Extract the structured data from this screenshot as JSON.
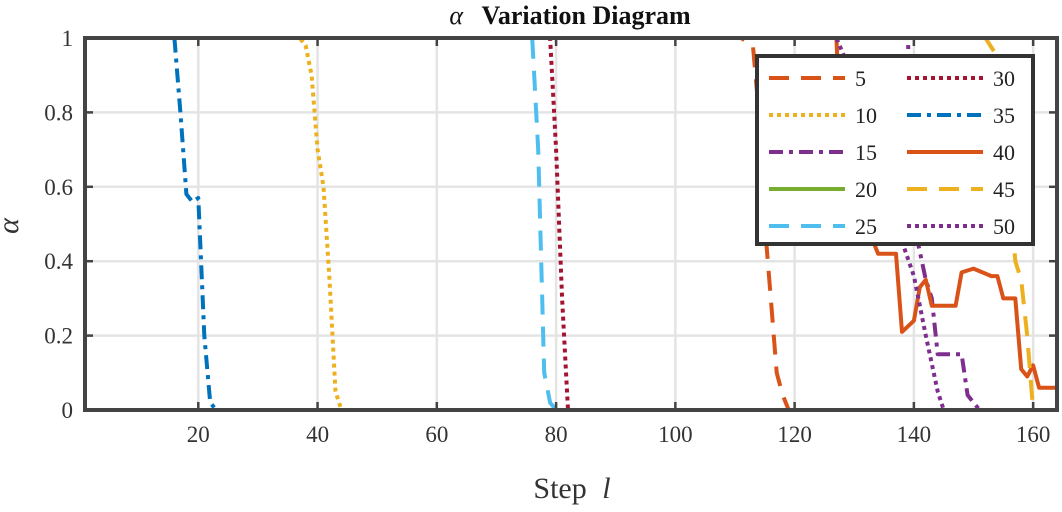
{
  "chart_data": {
    "type": "line",
    "title": "Variation Diagram",
    "title_symbol": "α",
    "xlabel": "Step",
    "xlabel_symbol": "l",
    "ylabel": "α",
    "xlim": [
      1,
      164
    ],
    "ylim": [
      0,
      1
    ],
    "xticks": [
      20,
      40,
      60,
      80,
      100,
      120,
      140,
      160
    ],
    "yticks": [
      0,
      0.2,
      0.4,
      0.6,
      0.8,
      1
    ],
    "xtick_labels": [
      "20",
      "40",
      "60",
      "80",
      "100",
      "120",
      "140",
      "160"
    ],
    "ytick_labels": [
      "0",
      "0.2",
      "0.4",
      "0.6",
      "0.8",
      "1"
    ],
    "grid": true,
    "legend": {
      "position": "top-right",
      "columns": 2
    },
    "series": [
      {
        "name": "5",
        "color": "#d95319",
        "style": "dashed",
        "points": [
          [
            1,
            1
          ],
          [
            111,
            1
          ],
          [
            113,
            0.98
          ],
          [
            114,
            0.8
          ],
          [
            115,
            0.5
          ],
          [
            116,
            0.3
          ],
          [
            117,
            0.1
          ],
          [
            118,
            0.04
          ],
          [
            119,
            0
          ],
          [
            164,
            0
          ]
        ]
      },
      {
        "name": "10",
        "color": "#edb120",
        "style": "dotted",
        "points": [
          [
            1,
            1
          ],
          [
            37,
            1
          ],
          [
            38,
            0.98
          ],
          [
            39,
            0.9
          ],
          [
            40,
            0.7
          ],
          [
            41,
            0.6
          ],
          [
            42,
            0.35
          ],
          [
            43,
            0.05
          ],
          [
            44,
            0
          ],
          [
            164,
            0
          ]
        ]
      },
      {
        "name": "15",
        "color": "#7e2f8e",
        "style": "dashdot",
        "points": [
          [
            1,
            1
          ],
          [
            139,
            1
          ],
          [
            140,
            0.5
          ],
          [
            142,
            0.35
          ],
          [
            143,
            0.3
          ],
          [
            144,
            0.15
          ],
          [
            148,
            0.15
          ],
          [
            149,
            0.04
          ],
          [
            151,
            0
          ],
          [
            164,
            0
          ]
        ]
      },
      {
        "name": "20",
        "color": "#77ac30",
        "style": "solid",
        "points": [
          [
            1,
            1
          ],
          [
            164,
            1
          ]
        ]
      },
      {
        "name": "25",
        "color": "#4dbeee",
        "style": "dashed",
        "points": [
          [
            1,
            1
          ],
          [
            76,
            1
          ],
          [
            77,
            0.7
          ],
          [
            77.5,
            0.4
          ],
          [
            78,
            0.1
          ],
          [
            79,
            0.02
          ],
          [
            80,
            0
          ],
          [
            164,
            0
          ]
        ]
      },
      {
        "name": "30",
        "color": "#a2142f",
        "style": "dotted",
        "points": [
          [
            1,
            1
          ],
          [
            79,
            1
          ],
          [
            80,
            0.7
          ],
          [
            81,
            0.3
          ],
          [
            82,
            0
          ],
          [
            164,
            0
          ]
        ]
      },
      {
        "name": "35",
        "color": "#0072bd",
        "style": "dashdot",
        "points": [
          [
            1,
            1
          ],
          [
            16,
            1
          ],
          [
            17,
            0.8
          ],
          [
            18,
            0.58
          ],
          [
            19,
            0.56
          ],
          [
            20,
            0.57
          ],
          [
            21,
            0.2
          ],
          [
            22,
            0.02
          ],
          [
            23,
            0
          ],
          [
            164,
            0
          ]
        ]
      },
      {
        "name": "40",
        "color": "#d95319",
        "style": "solid",
        "points": [
          [
            1,
            1
          ],
          [
            127,
            1
          ],
          [
            128,
            0.65
          ],
          [
            132,
            0.5
          ],
          [
            134,
            0.42
          ],
          [
            137,
            0.42
          ],
          [
            138,
            0.21
          ],
          [
            140,
            0.24
          ],
          [
            141,
            0.33
          ],
          [
            142,
            0.35
          ],
          [
            143,
            0.28
          ],
          [
            147,
            0.28
          ],
          [
            148,
            0.37
          ],
          [
            150,
            0.38
          ],
          [
            153,
            0.36
          ],
          [
            154,
            0.36
          ],
          [
            155,
            0.3
          ],
          [
            157,
            0.3
          ],
          [
            158,
            0.11
          ],
          [
            159,
            0.09
          ],
          [
            160,
            0.12
          ],
          [
            161,
            0.06
          ],
          [
            164,
            0.06
          ]
        ]
      },
      {
        "name": "45",
        "color": "#edb120",
        "style": "dashed",
        "points": [
          [
            1,
            1
          ],
          [
            152,
            1
          ],
          [
            154,
            0.95
          ],
          [
            156,
            0.6
          ],
          [
            157,
            0.4
          ],
          [
            158,
            0.35
          ],
          [
            159,
            0.2
          ],
          [
            160,
            0
          ],
          [
            164,
            0
          ]
        ]
      },
      {
        "name": "50",
        "color": "#7e2f8e",
        "style": "dotted",
        "points": [
          [
            1,
            1
          ],
          [
            127,
            1
          ],
          [
            131,
            0.85
          ],
          [
            133,
            0.6
          ],
          [
            137,
            0.5
          ],
          [
            140,
            0.36
          ],
          [
            142,
            0.2
          ],
          [
            144,
            0.05
          ],
          [
            145,
            0
          ],
          [
            164,
            0
          ]
        ]
      }
    ]
  }
}
